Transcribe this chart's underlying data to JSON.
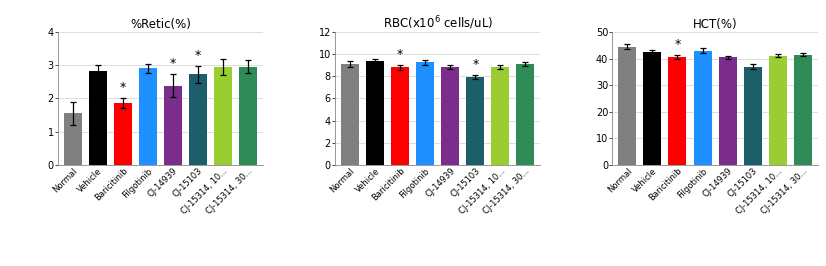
{
  "charts": [
    {
      "title": "%Retic(%)",
      "title_color": "#000000",
      "ylim": [
        0,
        4
      ],
      "yticks": [
        0,
        1,
        2,
        3,
        4
      ],
      "categories": [
        "Normal",
        "Vehicle",
        "Baricitinib",
        "Filgotinib",
        "CJ-14939",
        "CJ-15103",
        "CJ-15314, 10...",
        "CJ-15314, 30..."
      ],
      "values": [
        1.55,
        2.82,
        1.85,
        2.9,
        2.38,
        2.72,
        2.95,
        2.95
      ],
      "errors": [
        0.35,
        0.2,
        0.15,
        0.15,
        0.35,
        0.25,
        0.25,
        0.2
      ],
      "sig": [
        false,
        false,
        true,
        false,
        true,
        true,
        false,
        false
      ],
      "colors": [
        "#808080",
        "#000000",
        "#ff0000",
        "#1e90ff",
        "#7b2d8b",
        "#1c5f6b",
        "#9acd32",
        "#2e8b57"
      ]
    },
    {
      "title": "RBC(x10$^6$ cells/uL)",
      "title_color": "#000000",
      "ylim": [
        0,
        12
      ],
      "yticks": [
        0,
        2,
        4,
        6,
        8,
        10,
        12
      ],
      "categories": [
        "Normal",
        "Vehicle",
        "Baricitinib",
        "Filgotinib",
        "CJ-14939",
        "CJ-15103",
        "CJ-15314, 10...",
        "CJ-15314, 30..."
      ],
      "values": [
        9.1,
        9.35,
        8.8,
        9.25,
        8.85,
        7.95,
        8.85,
        9.1
      ],
      "errors": [
        0.25,
        0.2,
        0.25,
        0.2,
        0.2,
        0.2,
        0.2,
        0.15
      ],
      "sig": [
        false,
        false,
        true,
        false,
        false,
        true,
        false,
        false
      ],
      "colors": [
        "#808080",
        "#000000",
        "#ff0000",
        "#1e90ff",
        "#7b2d8b",
        "#1c5f6b",
        "#9acd32",
        "#2e8b57"
      ]
    },
    {
      "title": "HCT(%)",
      "title_color": "#000000",
      "ylim": [
        0,
        50
      ],
      "yticks": [
        0,
        10,
        20,
        30,
        40,
        50
      ],
      "categories": [
        "Normal",
        "Vehicle",
        "Baricitinib",
        "Filgotinib",
        "CJ-14939",
        "CJ-15103",
        "CJ-15314, 10...",
        "CJ-15314, 30..."
      ],
      "values": [
        44.5,
        42.5,
        40.5,
        43.0,
        40.5,
        37.0,
        41.0,
        41.5
      ],
      "errors": [
        0.8,
        0.8,
        0.8,
        0.8,
        0.5,
        0.8,
        0.6,
        0.6
      ],
      "sig": [
        false,
        false,
        true,
        false,
        false,
        false,
        false,
        false
      ],
      "colors": [
        "#808080",
        "#000000",
        "#ff0000",
        "#1e90ff",
        "#7b2d8b",
        "#1c5f6b",
        "#9acd32",
        "#2e8b57"
      ]
    }
  ],
  "fig_width": 8.26,
  "fig_height": 2.66,
  "dpi": 100,
  "background_color": "#ffffff"
}
